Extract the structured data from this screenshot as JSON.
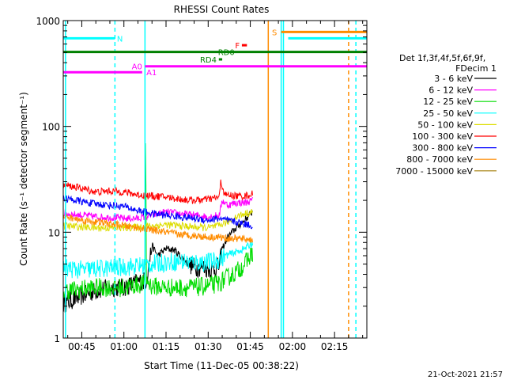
{
  "chart_data": {
    "type": "line",
    "title": "RHESSI Count Rates",
    "xlabel": "Start Time (11-Dec-05 00:38:22)",
    "ylabel": "Count Rate (s⁻¹ detector segment⁻¹)",
    "ylog": true,
    "ylim": [
      1,
      1000
    ],
    "xlim_minutes": [
      38.4,
      146.5
    ],
    "x_ticks": [
      {
        "label": "00:45",
        "minute": 45
      },
      {
        "label": "01:00",
        "minute": 60
      },
      {
        "label": "01:15",
        "minute": 75
      },
      {
        "label": "01:30",
        "minute": 90
      },
      {
        "label": "01:45",
        "minute": 105
      },
      {
        "label": "02:00",
        "minute": 120
      },
      {
        "label": "02:15",
        "minute": 135
      }
    ],
    "y_ticks": [
      {
        "label": "1",
        "value": 1
      },
      {
        "label": "10",
        "value": 10
      },
      {
        "label": "100",
        "value": 100
      },
      {
        "label": "1000",
        "value": 1000
      }
    ],
    "legend_header": [
      "Det 1f,3f,4f,5f,6f,9f,",
      "FDecim 1"
    ],
    "legend_placement": "right",
    "series": [
      {
        "name": "3 - 6 keV",
        "color": "#000000",
        "x": [
          38.5,
          45,
          50,
          55,
          60,
          65,
          68,
          70,
          72,
          75,
          78,
          80,
          83,
          86,
          88,
          90,
          92,
          94,
          95,
          97,
          100,
          103,
          106
        ],
        "y": [
          2.1,
          2.5,
          2.8,
          3.0,
          3.0,
          3.4,
          3.5,
          7.5,
          6.0,
          7.0,
          6.8,
          6.0,
          5.0,
          4.6,
          4.7,
          4.5,
          4.5,
          4.8,
          7.0,
          9.0,
          11.0,
          13.0,
          16.0
        ]
      },
      {
        "name": "6 - 12 keV",
        "color": "#ff00ff",
        "x": [
          38.5,
          45,
          50,
          55,
          60,
          65,
          70,
          75,
          80,
          85,
          90,
          94,
          95,
          97,
          100,
          103,
          106
        ],
        "y": [
          15.0,
          14.5,
          14.0,
          13.8,
          13.5,
          13.5,
          14.5,
          15.5,
          15.0,
          14.5,
          14.0,
          14.5,
          20.0,
          18.0,
          19.0,
          19.0,
          20.0
        ]
      },
      {
        "name": "12 - 25 keV",
        "color": "#00dd00",
        "x": [
          38.5,
          45,
          50,
          55,
          60,
          65,
          67.5,
          67.7,
          68,
          70,
          75,
          80,
          85,
          90,
          94,
          96,
          100,
          103,
          106
        ],
        "y": [
          2.8,
          2.9,
          3.0,
          3.0,
          3.0,
          3.2,
          3.3,
          170,
          3.5,
          3.1,
          3.0,
          3.0,
          3.0,
          3.1,
          3.3,
          3.6,
          4.2,
          5.0,
          6.5
        ]
      },
      {
        "name": "25 - 50 keV",
        "color": "#00ffff",
        "x": [
          38.5,
          45,
          50,
          55,
          60,
          65,
          70,
          75,
          80,
          85,
          90,
          94,
          96,
          100,
          103,
          106
        ],
        "y": [
          4.6,
          4.4,
          4.5,
          4.6,
          4.7,
          4.8,
          5.0,
          5.2,
          5.3,
          5.2,
          5.2,
          5.5,
          6.0,
          6.5,
          7.0,
          8.0
        ]
      },
      {
        "name": "50 - 100 keV",
        "color": "#dddd00",
        "x": [
          38.5,
          45,
          50,
          55,
          60,
          65,
          70,
          75,
          80,
          85,
          90,
          94,
          95,
          97,
          100,
          103,
          106
        ],
        "y": [
          11.5,
          11.2,
          11.0,
          11.0,
          11.0,
          11.2,
          11.5,
          11.8,
          11.5,
          11.2,
          11.0,
          11.5,
          12.0,
          12.5,
          14.0,
          15.0,
          15.5
        ]
      },
      {
        "name": "100 - 300 keV",
        "color": "#ff0000",
        "x": [
          38.5,
          45,
          50,
          55,
          60,
          65,
          70,
          75,
          80,
          85,
          90,
          94,
          94.5,
          96,
          100,
          103,
          106
        ],
        "y": [
          28.0,
          26.0,
          24.0,
          24.5,
          24.0,
          22.5,
          22.0,
          21.5,
          20.5,
          20.0,
          20.5,
          21.5,
          30.0,
          22.5,
          22.0,
          22.0,
          23.0
        ]
      },
      {
        "name": "300 - 800 keV",
        "color": "#0000ff",
        "x": [
          38.5,
          45,
          50,
          55,
          60,
          65,
          70,
          75,
          80,
          85,
          90,
          94,
          96,
          100,
          103,
          106
        ],
        "y": [
          21.0,
          19.5,
          18.5,
          18.0,
          17.5,
          16.0,
          15.0,
          14.5,
          14.0,
          13.5,
          13.0,
          13.5,
          13.0,
          12.5,
          12.0,
          11.5
        ]
      },
      {
        "name": "800 - 7000 keV",
        "color": "#ff8c00",
        "x": [
          38.5,
          45,
          50,
          55,
          60,
          65,
          70,
          75,
          80,
          85,
          90,
          94,
          96,
          100,
          103,
          106
        ],
        "y": [
          14.0,
          13.0,
          12.5,
          12.0,
          11.5,
          11.0,
          10.5,
          10.0,
          9.5,
          9.3,
          9.0,
          9.0,
          8.8,
          8.7,
          8.6,
          8.5
        ]
      },
      {
        "name": "7000 - 15000 keV",
        "color": "#a07a00",
        "x": [],
        "y": []
      }
    ],
    "flag_bars": [
      {
        "label": "N",
        "color": "#00ffff",
        "segments": [
          [
            38.4,
            56.8
          ]
        ],
        "value": 680,
        "label_at": 57.5,
        "label_side": "right"
      },
      {
        "label": "RD0",
        "color": "#008000",
        "segments": [
          [
            38.4,
            146.5
          ]
        ],
        "value": 505,
        "label_at": 93.5,
        "label_side": "right"
      },
      {
        "label": "RD4",
        "color": "#008000",
        "segments": [
          [
            93.8,
            95.0
          ]
        ],
        "value": 430,
        "label_at": 93.0,
        "label_side": "left"
      },
      {
        "label": "A0",
        "color": "#ff00ff",
        "segments": [
          [
            67.5,
            146.5
          ]
        ],
        "value": 370,
        "label_at": 66.5,
        "label_side": "left"
      },
      {
        "label": "A1",
        "color": "#ff00ff",
        "segments": [
          [
            38.4,
            66.5
          ]
        ],
        "value": 325,
        "label_at": 68.0,
        "label_side": "right"
      },
      {
        "label": "F",
        "color": "#ff0000",
        "segments": [
          [
            102.0,
            103.8
          ]
        ],
        "value": 585,
        "label_at": 101.2,
        "label_side": "left"
      },
      {
        "label": "S",
        "color": "#ff8c00",
        "segments": [
          [
            116.0,
            146.5
          ]
        ],
        "value": 780,
        "label_at": 114.5,
        "label_side": "left"
      },
      {
        "label": "",
        "color": "#00ffff",
        "segments": [
          [
            118.5,
            146.5
          ]
        ],
        "value": 680,
        "label_at": 0,
        "label_side": "none"
      }
    ],
    "vertical_lines": [
      {
        "minute": 39.2,
        "color": "#00ffff",
        "style": "solid"
      },
      {
        "minute": 56.8,
        "color": "#00ffff",
        "style": "dashed"
      },
      {
        "minute": 67.5,
        "color": "#00ffff",
        "style": "solid"
      },
      {
        "minute": 111.4,
        "color": "#ff8c00",
        "style": "solid"
      },
      {
        "minute": 116.0,
        "color": "#00ffff",
        "style": "solid"
      },
      {
        "minute": 116.8,
        "color": "#00ffff",
        "style": "solid"
      },
      {
        "minute": 140.0,
        "color": "#ff8c00",
        "style": "dashed"
      },
      {
        "minute": 142.6,
        "color": "#00ffff",
        "style": "dashed"
      }
    ]
  },
  "footer": {
    "timestamp": "21-Oct-2021 21:57"
  }
}
